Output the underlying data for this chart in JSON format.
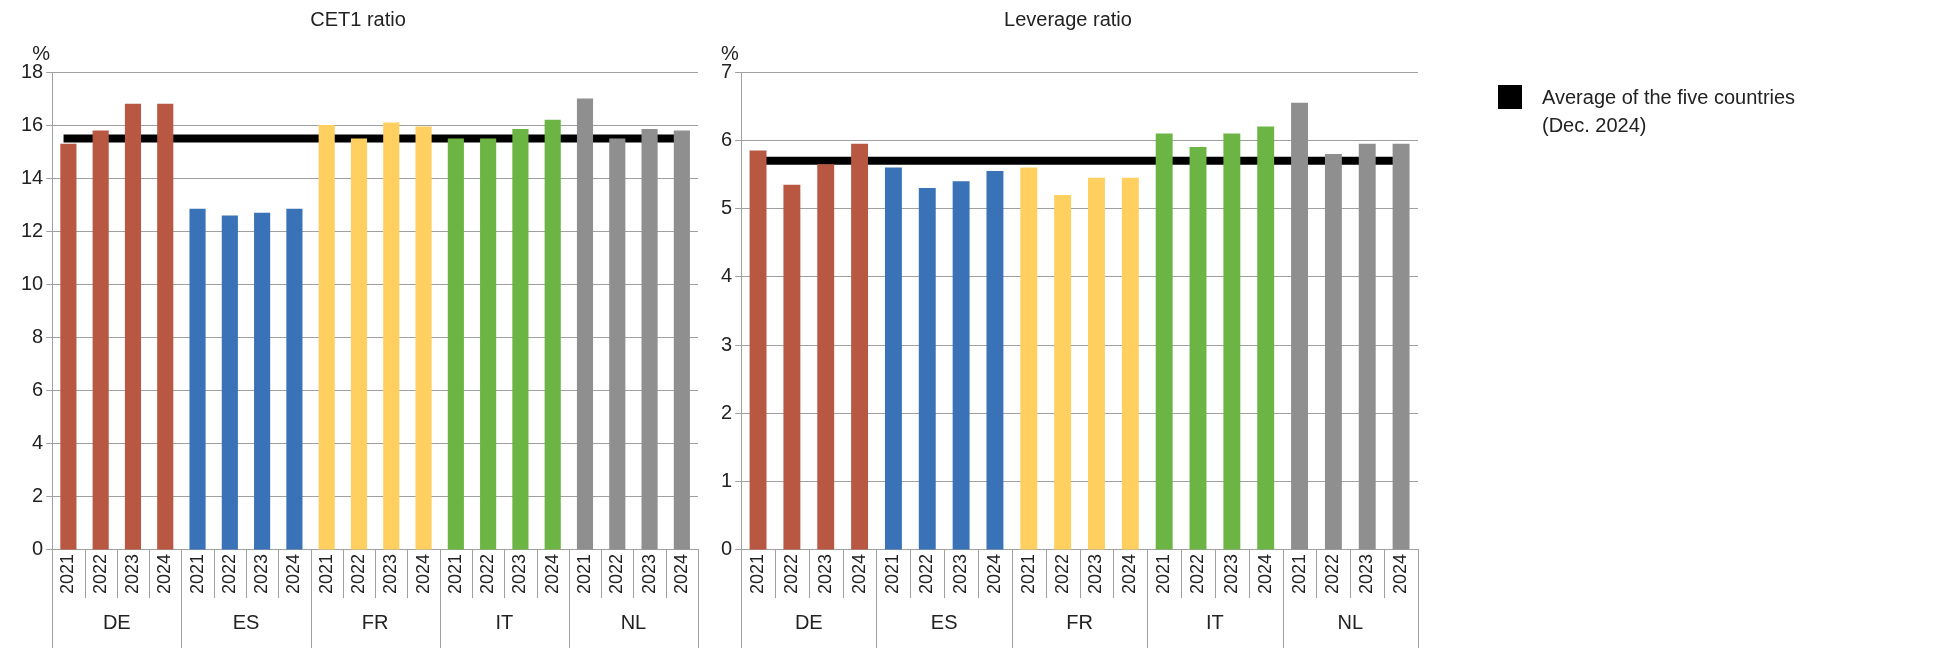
{
  "chart_data": [
    {
      "type": "bar",
      "title": "CET1 ratio",
      "ylabel": "%",
      "categories": [
        "2021",
        "2022",
        "2023",
        "2024",
        "2021",
        "2022",
        "2023",
        "2024",
        "2021",
        "2022",
        "2023",
        "2024",
        "2021",
        "2022",
        "2023",
        "2024",
        "2021",
        "2022",
        "2023",
        "2024"
      ],
      "series": [
        {
          "name": "DE",
          "color": "#b85843",
          "values": [
            15.3,
            15.8,
            16.8,
            16.8,
            null,
            null,
            null,
            null,
            null,
            null,
            null,
            null,
            null,
            null,
            null,
            null,
            null,
            null,
            null,
            null
          ]
        },
        {
          "name": "ES",
          "color": "#3a72b8",
          "values": [
            null,
            null,
            null,
            null,
            12.85,
            12.6,
            12.7,
            12.85,
            null,
            null,
            null,
            null,
            null,
            null,
            null,
            null,
            null,
            null,
            null,
            null
          ]
        },
        {
          "name": "FR",
          "color": "#ffcf5f",
          "values": [
            null,
            null,
            null,
            null,
            null,
            null,
            null,
            null,
            16.0,
            15.5,
            16.1,
            15.95,
            null,
            null,
            null,
            null,
            null,
            null,
            null,
            null
          ]
        },
        {
          "name": "IT",
          "color": "#6cb443",
          "values": [
            null,
            null,
            null,
            null,
            null,
            null,
            null,
            null,
            null,
            null,
            null,
            null,
            15.5,
            15.5,
            15.85,
            16.2,
            null,
            null,
            null,
            null
          ]
        },
        {
          "name": "NL",
          "color": "#8f8f8f",
          "values": [
            null,
            null,
            null,
            null,
            null,
            null,
            null,
            null,
            null,
            null,
            null,
            null,
            null,
            null,
            null,
            null,
            17.0,
            15.5,
            15.85,
            15.8
          ]
        }
      ],
      "ylim": [
        0,
        18
      ],
      "yticks": [
        0,
        2,
        4,
        6,
        8,
        10,
        12,
        14,
        16,
        18
      ],
      "grid": "y",
      "ref_lines": [
        {
          "axis": "y",
          "value": 15.5,
          "color": "#000000"
        }
      ]
    },
    {
      "type": "bar",
      "title": "Leverage ratio",
      "ylabel": "%",
      "categories": [
        "2021",
        "2022",
        "2023",
        "2024",
        "2021",
        "2022",
        "2023",
        "2024",
        "2021",
        "2022",
        "2023",
        "2024",
        "2021",
        "2022",
        "2023",
        "2024",
        "2021",
        "2022",
        "2023",
        "2024"
      ],
      "series": [
        {
          "name": "DE",
          "color": "#b85843",
          "values": [
            5.85,
            5.35,
            5.65,
            5.95,
            null,
            null,
            null,
            null,
            null,
            null,
            null,
            null,
            null,
            null,
            null,
            null,
            null,
            null,
            null,
            null
          ]
        },
        {
          "name": "ES",
          "color": "#3a72b8",
          "values": [
            null,
            null,
            null,
            null,
            5.6,
            5.3,
            5.4,
            5.55,
            null,
            null,
            null,
            null,
            null,
            null,
            null,
            null,
            null,
            null,
            null,
            null
          ]
        },
        {
          "name": "FR",
          "color": "#ffcf5f",
          "values": [
            null,
            null,
            null,
            null,
            null,
            null,
            null,
            null,
            5.6,
            5.2,
            5.45,
            5.45,
            null,
            null,
            null,
            null,
            null,
            null,
            null,
            null
          ]
        },
        {
          "name": "IT",
          "color": "#6cb443",
          "values": [
            null,
            null,
            null,
            null,
            null,
            null,
            null,
            null,
            null,
            null,
            null,
            null,
            6.1,
            5.9,
            6.1,
            6.2,
            null,
            null,
            null,
            null
          ]
        },
        {
          "name": "NL",
          "color": "#8f8f8f",
          "values": [
            null,
            null,
            null,
            null,
            null,
            null,
            null,
            null,
            null,
            null,
            null,
            null,
            null,
            null,
            null,
            null,
            6.55,
            5.8,
            5.95,
            5.95
          ]
        }
      ],
      "ylim": [
        0,
        7
      ],
      "yticks": [
        0,
        1,
        2,
        3,
        4,
        5,
        6,
        7
      ],
      "grid": "y",
      "ref_lines": [
        {
          "axis": "y",
          "value": 5.7,
          "color": "#000000",
          "label": "Average of the five countries (Dec. 2024)"
        }
      ]
    }
  ]
}
